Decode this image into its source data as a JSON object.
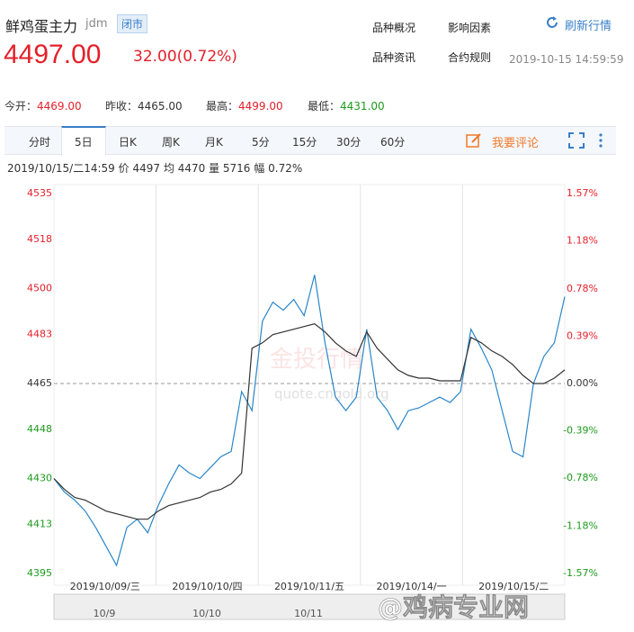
{
  "header": {
    "title": "鲜鸡蛋主力",
    "code": "jdm",
    "status": "闭市",
    "price": "4497.00",
    "change": "32.00(0.72%)",
    "links": [
      "品种概况",
      "影响因素",
      "品种资讯",
      "合约规则"
    ],
    "refresh": "刷新行情",
    "timestamp": "2019-10-15 14:59:59"
  },
  "stats": [
    {
      "label": "今开",
      "value": "4469.00"
    },
    {
      "label": "昨收",
      "value": "4465.00"
    },
    {
      "label": "最高",
      "value": "4499.00"
    },
    {
      "label": "最低",
      "value": "4431.00"
    }
  ],
  "tabs": [
    "分时",
    "5日",
    "日K",
    "周K",
    "月K",
    "5分",
    "15分",
    "30分",
    "60分"
  ],
  "comment": "我要评论",
  "info": {
    "time": "2019/10/15/二14:59",
    "items": [
      {
        "label": "价",
        "value": "4497"
      },
      {
        "label": "均",
        "value": "4470"
      },
      {
        "label": "量",
        "value": "5716"
      },
      {
        "label": "幅",
        "value": "0.72%"
      }
    ]
  },
  "watermark": "@鸡病专业网",
  "chart_data": {
    "type": "line",
    "days": [
      "2019/10/09/三",
      "2019/10/10/四",
      "2019/10/11/五",
      "2019/10/14/一",
      "2019/10/15/二"
    ],
    "series": [
      {
        "name": "价",
        "color": "#2a86c8",
        "values": [
          4430,
          4425,
          4422,
          4418,
          4412,
          4405,
          4398,
          4412,
          4415,
          4410,
          4420,
          4428,
          4435,
          4432,
          4430,
          4434,
          4438,
          4440,
          4462,
          4455,
          4488,
          4495,
          4492,
          4496,
          4490,
          4505,
          4480,
          4460,
          4455,
          4460,
          4485,
          4460,
          4455,
          4448,
          4455,
          4456,
          4458,
          4460,
          4458,
          4462,
          4485,
          4478,
          4470,
          4455,
          4440,
          4438,
          4465,
          4475,
          4480,
          4497
        ]
      },
      {
        "name": "均",
        "color": "#333333",
        "values": [
          4430,
          4426,
          4423,
          4422,
          4420,
          4418,
          4417,
          4416,
          4415,
          4415,
          4418,
          4420,
          4421,
          4422,
          4423,
          4425,
          4426,
          4428,
          4432,
          4478,
          4480,
          4483,
          4484,
          4485,
          4486,
          4487,
          4484,
          4480,
          4477,
          4475,
          4484,
          4478,
          4474,
          4470,
          4468,
          4467,
          4467,
          4466,
          4466,
          4466,
          4482,
          4480,
          4477,
          4475,
          4472,
          4468,
          4465,
          4465,
          4467,
          4470
        ]
      }
    ],
    "ylim": [
      4395,
      4535
    ],
    "yticks": [
      4535,
      4518,
      4500,
      4483,
      4465,
      4448,
      4430,
      4413,
      4395
    ],
    "y2lim": [
      -1.57,
      1.57
    ],
    "y2ticks": [
      {
        "value": 1.57,
        "label": "1.57%"
      },
      {
        "value": 1.18,
        "label": "1.18%"
      },
      {
        "value": 0.78,
        "label": "0.78%"
      },
      {
        "value": 0.39,
        "label": "0.39%"
      },
      {
        "value": 0,
        "label": "0.00%"
      },
      {
        "value": -0.39,
        "label": "-0.39%"
      },
      {
        "value": -0.78,
        "label": "-0.78%"
      },
      {
        "value": -1.18,
        "label": "-1.18%"
      },
      {
        "value": -1.57,
        "label": "-1.57%"
      }
    ],
    "up_color": "#e4202a",
    "down_color": "#1d9a1d",
    "navigator_labels": [
      "10/9",
      "10/10",
      "10/11"
    ],
    "watermark_logo": "金投行情",
    "watermark_url": "quote.cngold.org"
  }
}
